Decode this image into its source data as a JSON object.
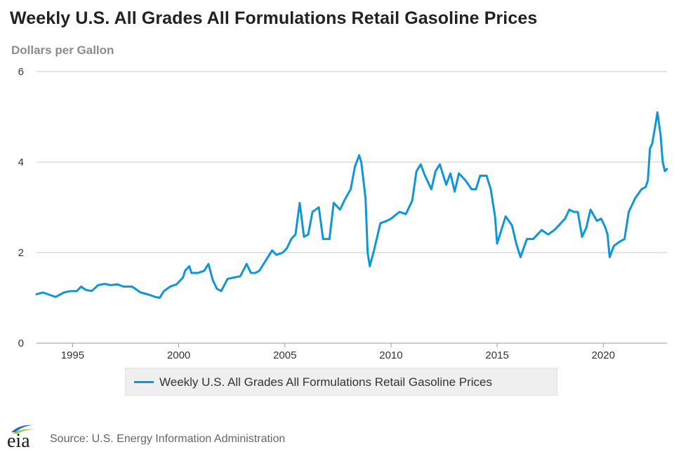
{
  "chart_data": {
    "type": "line",
    "title": "Weekly U.S. All Grades All Formulations Retail Gasoline Prices",
    "ylabel": "Dollars per Gallon",
    "xlabel": "",
    "xlim": [
      1993.3,
      2023.0
    ],
    "ylim": [
      0,
      6
    ],
    "yticks": [
      0,
      2,
      4,
      6
    ],
    "xticks": [
      1995,
      2000,
      2005,
      2010,
      2015,
      2020
    ],
    "grid": "horizontal",
    "legend_position": "bottom-center",
    "series": [
      {
        "name": "Weekly U.S. All Grades All Formulations Retail Gasoline Prices",
        "color": "#0f96d4",
        "x": [
          1993.3,
          1993.6,
          1993.9,
          1994.2,
          1994.6,
          1994.9,
          1995.2,
          1995.4,
          1995.6,
          1995.9,
          1996.2,
          1996.5,
          1996.8,
          1997.1,
          1997.4,
          1997.8,
          1998.2,
          1998.6,
          1998.9,
          1999.1,
          1999.3,
          1999.6,
          1999.9,
          2000.2,
          2000.3,
          2000.5,
          2000.6,
          2000.9,
          2001.2,
          2001.4,
          2001.6,
          2001.8,
          2002.0,
          2002.3,
          2002.6,
          2002.9,
          2003.2,
          2003.4,
          2003.6,
          2003.8,
          2004.0,
          2004.4,
          2004.6,
          2004.9,
          2005.1,
          2005.3,
          2005.5,
          2005.7,
          2005.9,
          2006.1,
          2006.3,
          2006.6,
          2006.8,
          2007.1,
          2007.3,
          2007.6,
          2007.8,
          2008.1,
          2008.3,
          2008.5,
          2008.6,
          2008.8,
          2008.9,
          2009.0,
          2009.2,
          2009.5,
          2009.8,
          2010.0,
          2010.4,
          2010.7,
          2011.0,
          2011.2,
          2011.4,
          2011.6,
          2011.9,
          2012.1,
          2012.3,
          2012.6,
          2012.8,
          2013.0,
          2013.2,
          2013.5,
          2013.8,
          2014.0,
          2014.2,
          2014.5,
          2014.7,
          2014.9,
          2015.0,
          2015.2,
          2015.4,
          2015.7,
          2015.9,
          2016.1,
          2016.4,
          2016.7,
          2016.9,
          2017.1,
          2017.4,
          2017.7,
          2017.9,
          2018.2,
          2018.4,
          2018.6,
          2018.8,
          2019.0,
          2019.2,
          2019.4,
          2019.7,
          2019.9,
          2020.1,
          2020.2,
          2020.3,
          2020.5,
          2020.8,
          2021.0,
          2021.2,
          2021.5,
          2021.8,
          2022.0,
          2022.1,
          2022.2,
          2022.3,
          2022.45,
          2022.55,
          2022.7,
          2022.8,
          2022.9,
          2023.0
        ],
        "y": [
          1.08,
          1.12,
          1.07,
          1.02,
          1.12,
          1.15,
          1.15,
          1.25,
          1.18,
          1.15,
          1.28,
          1.31,
          1.28,
          1.3,
          1.25,
          1.25,
          1.12,
          1.07,
          1.02,
          1.0,
          1.15,
          1.25,
          1.3,
          1.45,
          1.6,
          1.7,
          1.55,
          1.55,
          1.6,
          1.75,
          1.4,
          1.2,
          1.15,
          1.42,
          1.45,
          1.48,
          1.75,
          1.55,
          1.55,
          1.6,
          1.75,
          2.05,
          1.95,
          2.0,
          2.1,
          2.3,
          2.4,
          3.1,
          2.35,
          2.4,
          2.9,
          3.0,
          2.3,
          2.3,
          3.1,
          2.95,
          3.15,
          3.4,
          3.9,
          4.15,
          4.0,
          3.2,
          2.0,
          1.7,
          2.05,
          2.65,
          2.7,
          2.75,
          2.9,
          2.85,
          3.15,
          3.8,
          3.95,
          3.7,
          3.4,
          3.8,
          3.95,
          3.5,
          3.75,
          3.35,
          3.75,
          3.6,
          3.4,
          3.4,
          3.7,
          3.7,
          3.4,
          2.8,
          2.2,
          2.5,
          2.8,
          2.6,
          2.2,
          1.9,
          2.3,
          2.3,
          2.4,
          2.5,
          2.4,
          2.5,
          2.6,
          2.75,
          2.95,
          2.9,
          2.9,
          2.35,
          2.55,
          2.95,
          2.7,
          2.75,
          2.55,
          2.4,
          1.9,
          2.15,
          2.25,
          2.3,
          2.9,
          3.2,
          3.4,
          3.45,
          3.6,
          4.3,
          4.4,
          4.8,
          5.1,
          4.6,
          4.0,
          3.8,
          3.85
        ]
      }
    ]
  },
  "legend": {
    "label": "Weekly U.S. All Grades All Formulations Retail Gasoline Prices"
  },
  "footer": {
    "source": "Source: U.S. Energy Information Administration",
    "logo_text": "eia"
  }
}
